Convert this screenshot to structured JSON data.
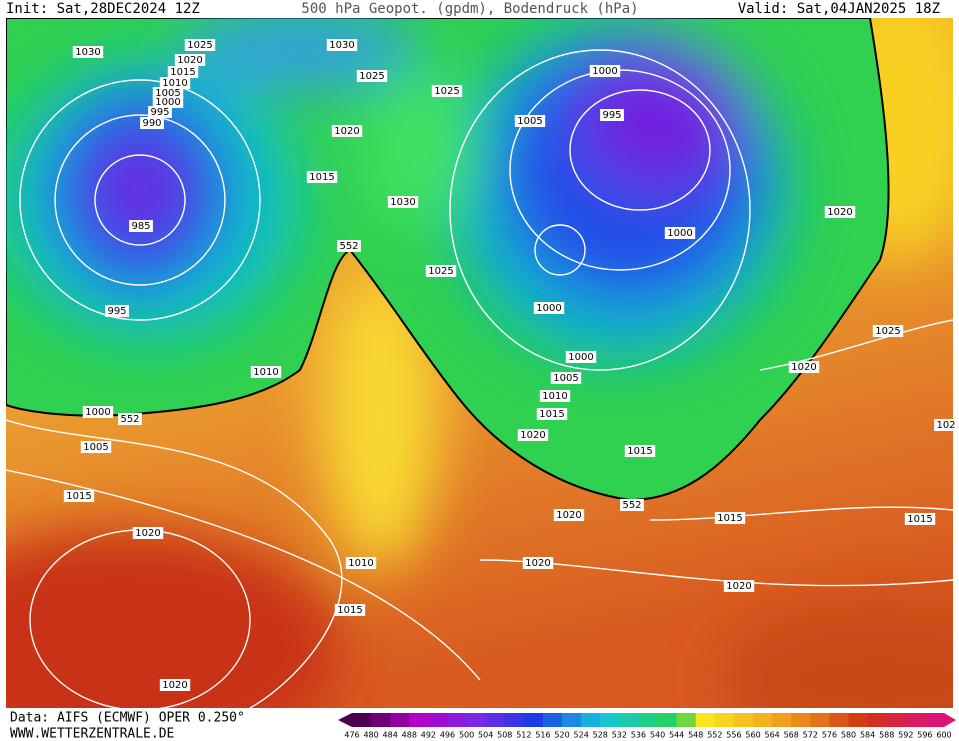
{
  "header": {
    "init": "Init: Sat,28DEC2024 12Z",
    "title": "500 hPa Geopot. (gpdm), Bodendruck (hPa)",
    "valid": "Valid: Sat,04JAN2025 18Z"
  },
  "footer": {
    "source": "Data: AIFS (ECMWF) OPER 0.250°",
    "site": "WWW.WETTERZENTRALE.DE"
  },
  "colorbar": {
    "values": [
      476,
      480,
      484,
      488,
      492,
      496,
      500,
      504,
      508,
      512,
      516,
      520,
      524,
      528,
      532,
      536,
      540,
      544,
      548,
      552,
      556,
      560,
      564,
      568,
      572,
      576,
      580,
      584,
      588,
      592,
      596,
      600
    ]
  },
  "isobar_labels": [
    "1030",
    "1025",
    "1020",
    "1015",
    "1010",
    "1005",
    "1000",
    "995",
    "990",
    "985",
    "995",
    "1010",
    "1000",
    "552",
    "1005",
    "1015",
    "1020",
    "1010",
    "1015",
    "1020",
    "1030",
    "1025",
    "1025",
    "1020",
    "1015",
    "1030",
    "552",
    "1025",
    "1000",
    "1005",
    "995",
    "1000",
    "1020",
    "1000",
    "1000",
    "1005",
    "1010",
    "1015",
    "1020",
    "1015",
    "552",
    "1020",
    "1015",
    "1020",
    "1020",
    "1025",
    "1020",
    "1015",
    "102"
  ]
}
